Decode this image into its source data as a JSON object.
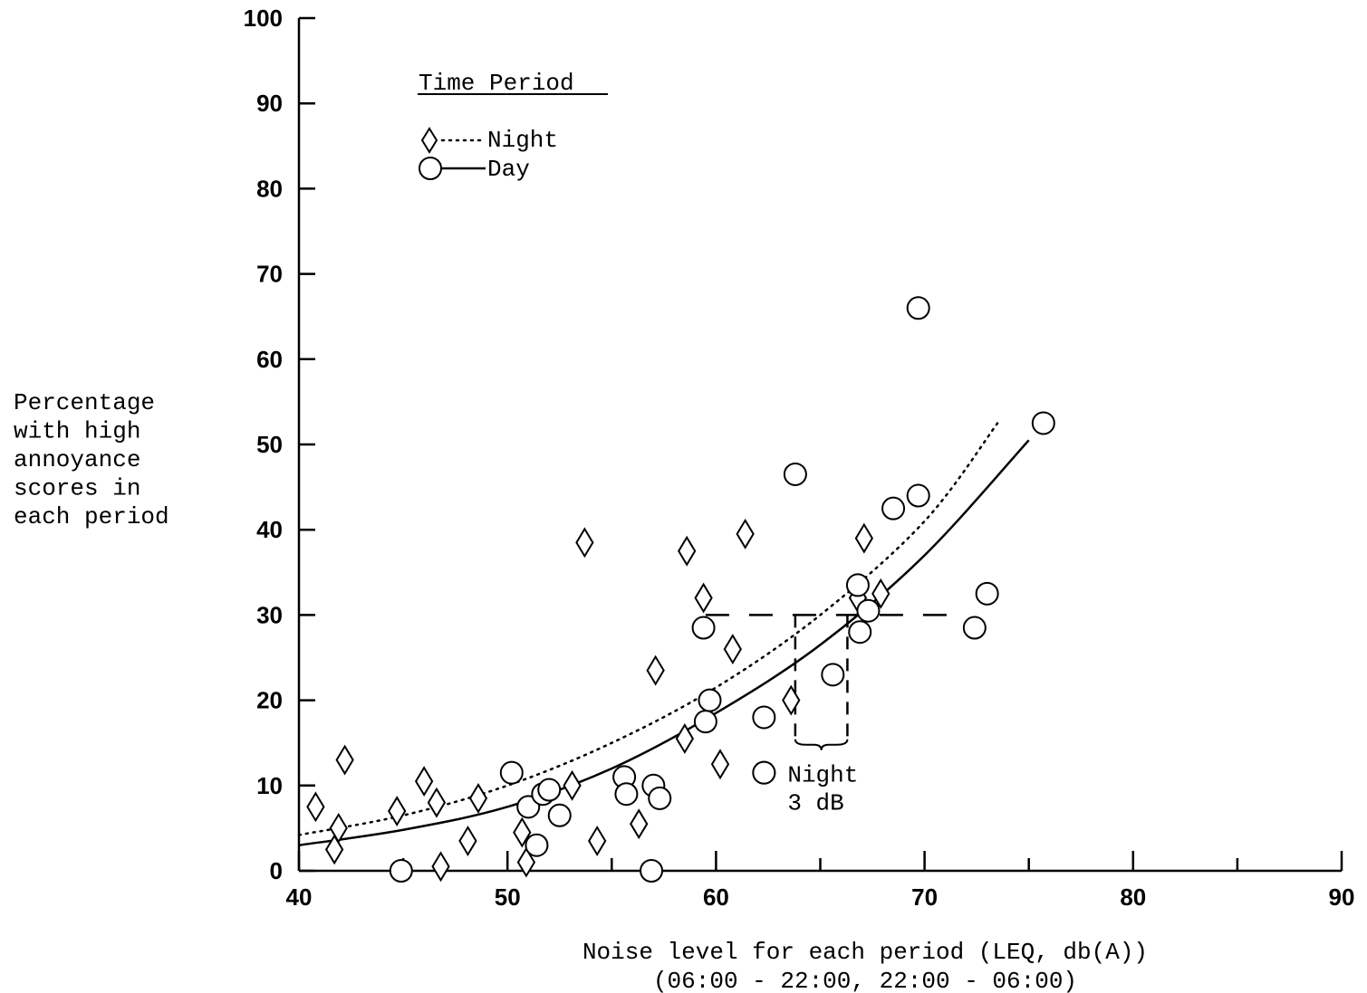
{
  "chart_data": {
    "type": "scatter",
    "title": "",
    "xlabel": "Noise level for each period (LEQ, db(A))",
    "xlabel_line2": "(06:00 - 22:00, 22:00 - 06:00)",
    "ylabel_lines": [
      "Percentage",
      "with high",
      "annoyance",
      "scores in",
      "each period"
    ],
    "xlim": [
      40,
      90
    ],
    "ylim": [
      0,
      100
    ],
    "x_ticks": [
      40,
      50,
      60,
      70,
      80,
      90
    ],
    "y_ticks": [
      0,
      10,
      20,
      30,
      40,
      50,
      60,
      70,
      80,
      90,
      100
    ],
    "grid": false,
    "legend": {
      "title": "Time Period",
      "position": "top-left",
      "entries": [
        {
          "label": "Night",
          "marker": "diamond",
          "line": "dotted"
        },
        {
          "label": "Day",
          "marker": "circle",
          "line": "solid"
        }
      ]
    },
    "series": [
      {
        "name": "Night",
        "marker": "diamond",
        "points": [
          [
            40.8,
            7.5
          ],
          [
            41.7,
            2.5
          ],
          [
            41.9,
            5.0
          ],
          [
            42.2,
            13.0
          ],
          [
            44.7,
            7.0
          ],
          [
            46.0,
            10.5
          ],
          [
            46.6,
            8.0
          ],
          [
            46.8,
            0.5
          ],
          [
            48.1,
            3.5
          ],
          [
            48.6,
            8.5
          ],
          [
            50.7,
            4.5
          ],
          [
            50.9,
            1.0
          ],
          [
            53.1,
            10.0
          ],
          [
            53.7,
            38.5
          ],
          [
            54.3,
            3.5
          ],
          [
            56.3,
            5.5
          ],
          [
            57.1,
            23.5
          ],
          [
            58.5,
            15.5
          ],
          [
            58.6,
            37.5
          ],
          [
            59.4,
            32.0
          ],
          [
            60.2,
            12.5
          ],
          [
            60.8,
            26.0
          ],
          [
            61.4,
            39.5
          ],
          [
            63.6,
            20.0
          ],
          [
            66.8,
            32.0
          ],
          [
            67.1,
            39.0
          ],
          [
            67.9,
            32.5
          ]
        ]
      },
      {
        "name": "Day",
        "marker": "circle",
        "points": [
          [
            44.9,
            0.0
          ],
          [
            50.2,
            11.5
          ],
          [
            51.0,
            7.5
          ],
          [
            51.4,
            3.0
          ],
          [
            51.7,
            9.0
          ],
          [
            52.0,
            9.5
          ],
          [
            52.5,
            6.5
          ],
          [
            55.6,
            11.0
          ],
          [
            55.7,
            9.0
          ],
          [
            57.0,
            10.0
          ],
          [
            57.3,
            8.5
          ],
          [
            56.9,
            0.0
          ],
          [
            59.4,
            28.5
          ],
          [
            59.5,
            17.5
          ],
          [
            59.7,
            20.0
          ],
          [
            62.3,
            18.0
          ],
          [
            62.3,
            11.5
          ],
          [
            63.8,
            46.5
          ],
          [
            65.6,
            23.0
          ],
          [
            66.8,
            33.5
          ],
          [
            66.9,
            28.0
          ],
          [
            67.3,
            30.5
          ],
          [
            68.5,
            42.5
          ],
          [
            69.7,
            44.0
          ],
          [
            69.7,
            66.0
          ],
          [
            72.4,
            28.5
          ],
          [
            73.0,
            32.5
          ],
          [
            75.7,
            52.5
          ]
        ]
      }
    ],
    "curves": [
      {
        "name": "Night",
        "style": "dotted",
        "points": [
          [
            40,
            4.2
          ],
          [
            45,
            6.5
          ],
          [
            50,
            10.0
          ],
          [
            55,
            15.0
          ],
          [
            60,
            21.5
          ],
          [
            65,
            30.0
          ],
          [
            70,
            41.0
          ],
          [
            73.5,
            52.5
          ]
        ]
      },
      {
        "name": "Day",
        "style": "solid",
        "points": [
          [
            40,
            3.0
          ],
          [
            45,
            4.8
          ],
          [
            50,
            7.5
          ],
          [
            55,
            12.0
          ],
          [
            60,
            18.5
          ],
          [
            65,
            26.5
          ],
          [
            70,
            37.0
          ],
          [
            75,
            50.5
          ]
        ]
      }
    ],
    "reference_lines": {
      "level_y": 30,
      "x_from": 59.5,
      "x_to": 72.0,
      "drop_x": [
        63.8,
        66.3
      ],
      "drop_to_y": 15
    },
    "annotation": {
      "marker": "circle",
      "marker_point": [
        62.3,
        11.5
      ],
      "line1": "Night",
      "line2": "3 dB"
    }
  }
}
